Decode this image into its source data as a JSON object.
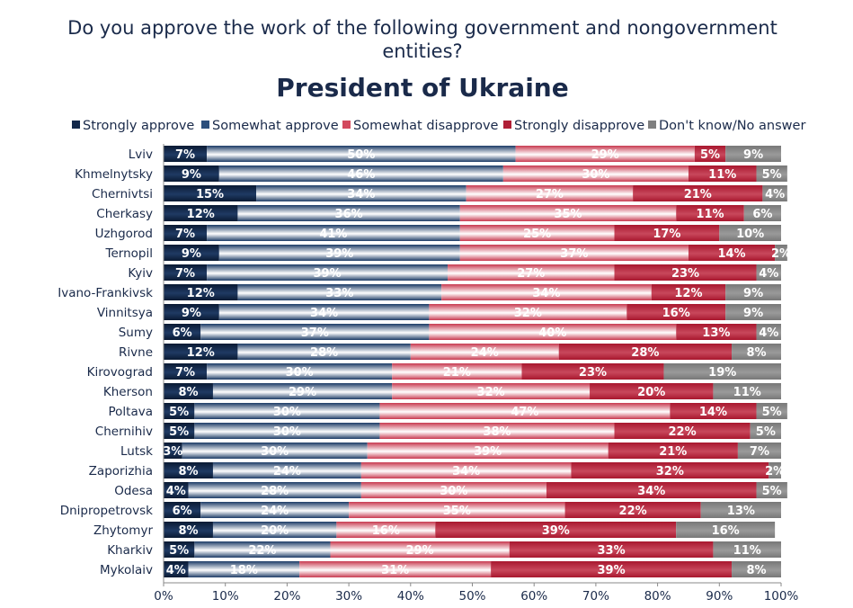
{
  "chart_data": {
    "type": "bar",
    "orientation": "horizontal",
    "stacked": true,
    "percent": true,
    "supertitle": "Do you approve the work of the following government and nongovernment entities?",
    "title": "President of Ukraine",
    "xlabel": "",
    "ylabel": "",
    "xlim": [
      0,
      100
    ],
    "xticks": [
      "0%",
      "10%",
      "20%",
      "30%",
      "40%",
      "50%",
      "60%",
      "70%",
      "80%",
      "90%",
      "100%"
    ],
    "legend_position": "top",
    "categories": [
      "Lviv",
      "Khmelnytsky",
      "Chernivtsi",
      "Cherkasy",
      "Uzhgorod",
      "Ternopil",
      "Kyiv",
      "Ivano-Frankivsk",
      "Vinnitsya",
      "Sumy",
      "Rivne",
      "Kirovograd",
      "Kherson",
      "Poltava",
      "Chernihiv",
      "Lutsk",
      "Zaporizhia",
      "Odesa",
      "Dnipropetrovsk",
      "Zhytomyr",
      "Kharkiv",
      "Mykolaiv"
    ],
    "series": [
      {
        "name": "Strongly approve",
        "color": "#13284a",
        "values": [
          7,
          9,
          15,
          12,
          7,
          9,
          7,
          12,
          9,
          6,
          12,
          7,
          8,
          5,
          5,
          3,
          8,
          4,
          6,
          8,
          5,
          4
        ]
      },
      {
        "name": "Somewhat approve",
        "color": "#2c4f7c",
        "values": [
          50,
          46,
          34,
          36,
          41,
          39,
          39,
          33,
          34,
          37,
          28,
          30,
          29,
          30,
          30,
          30,
          24,
          28,
          24,
          20,
          22,
          18
        ]
      },
      {
        "name": "Somewhat disapprove",
        "color": "#d34a5e",
        "values": [
          29,
          30,
          27,
          35,
          25,
          37,
          27,
          34,
          32,
          40,
          24,
          21,
          32,
          47,
          38,
          39,
          34,
          30,
          35,
          16,
          29,
          31
        ]
      },
      {
        "name": "Strongly disapprove",
        "color": "#b01f36",
        "values": [
          5,
          11,
          21,
          11,
          17,
          14,
          23,
          12,
          16,
          13,
          28,
          23,
          20,
          14,
          22,
          21,
          32,
          34,
          22,
          39,
          33,
          39
        ]
      },
      {
        "name": "Don't know/No answer",
        "color": "#7f7f7f",
        "values": [
          9,
          5,
          4,
          6,
          10,
          2,
          4,
          9,
          9,
          4,
          8,
          19,
          11,
          5,
          5,
          7,
          2,
          5,
          13,
          16,
          11,
          8
        ]
      }
    ]
  }
}
